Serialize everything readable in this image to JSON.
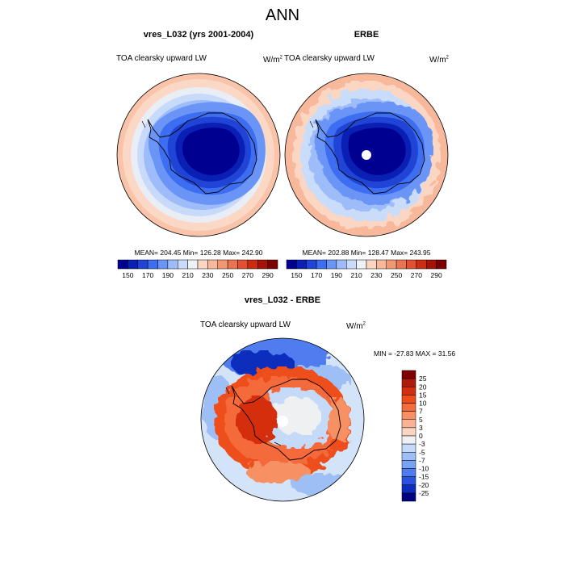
{
  "figure": {
    "title": "ANN"
  },
  "panels": [
    {
      "title": "vres_L032 (yrs 2001-2004)",
      "variable": "TOA clearsky upward LW",
      "units": "W/m",
      "units_sup": "2",
      "stats": "MEAN= 204.45  Min= 126.28  Max= 242.90"
    },
    {
      "title": "ERBE",
      "variable": "TOA clearsky upward LW",
      "units": "W/m",
      "units_sup": "2",
      "stats": "MEAN= 202.88  Min= 128.47  Max= 243.95"
    },
    {
      "title": "vres_L032 - ERBE",
      "variable": "TOA clearsky upward LW",
      "units": "W/m",
      "units_sup": "2",
      "stats": "MIN = -27.83 MAX =  31.56"
    }
  ],
  "colorbar_abs": {
    "labels": [
      "150",
      "170",
      "190",
      "210",
      "230",
      "250",
      "270",
      "290"
    ],
    "colors": [
      "#000090",
      "#0a1fb4",
      "#1f44d6",
      "#3d6df0",
      "#6a95f7",
      "#9dbcf9",
      "#c9dcfa",
      "#eef2f5",
      "#fbd6c3",
      "#f7b89c",
      "#f19774",
      "#ea7350",
      "#e2502f",
      "#cc2c12",
      "#a61207",
      "#7d0000"
    ]
  },
  "colorbar_diff": {
    "labels": [
      "25",
      "20",
      "15",
      "10",
      "7",
      "5",
      "3",
      "0",
      "-3",
      "-5",
      "-7",
      "-10",
      "-15",
      "-20",
      "-25"
    ],
    "colors": [
      "#800000",
      "#b01a0a",
      "#d42e10",
      "#ee4d1a",
      "#f56b3a",
      "#f79064",
      "#f9b394",
      "#fbd4c2",
      "#eef0f2",
      "#c5d9f8",
      "#9ebff6",
      "#7aa2f2",
      "#4f7def",
      "#2952e0",
      "#0c2dbd",
      "#000080"
    ]
  }
}
